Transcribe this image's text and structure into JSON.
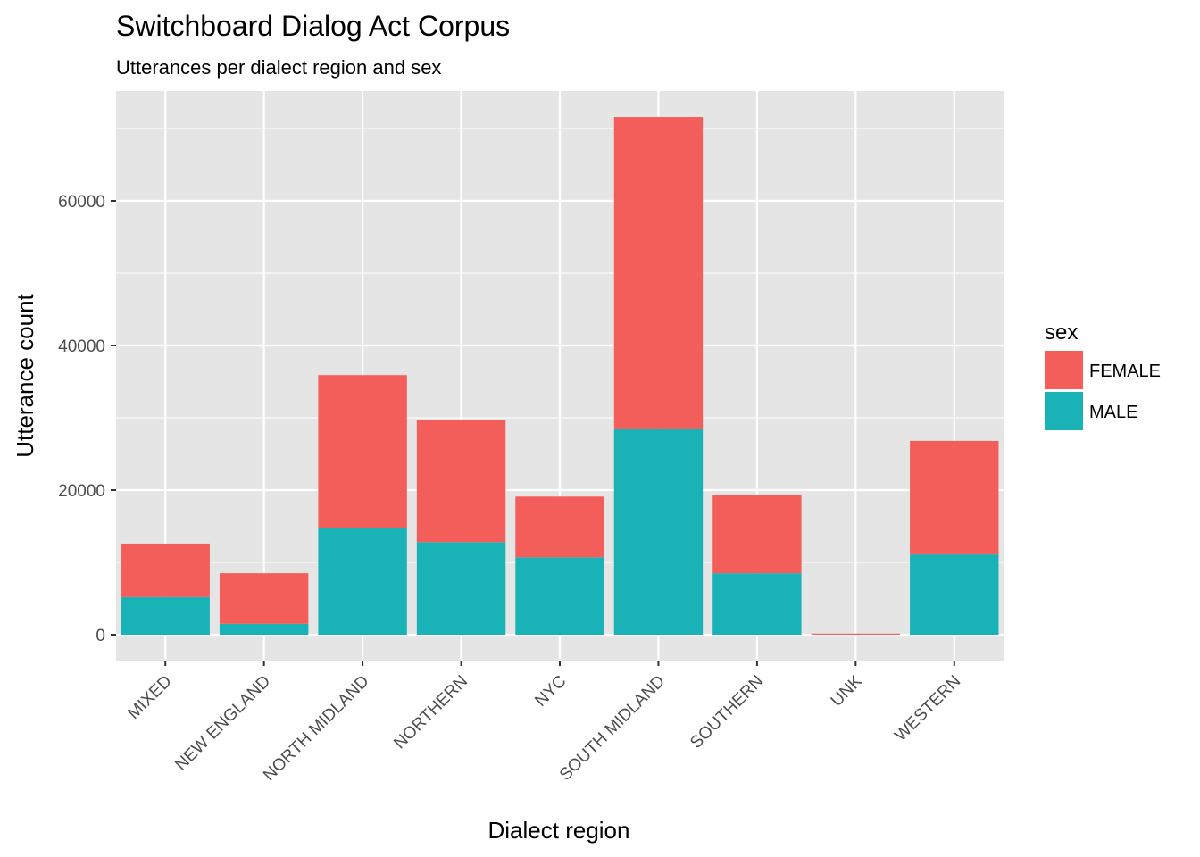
{
  "chart_data": {
    "type": "bar",
    "stacked": true,
    "title": "Switchboard Dialog Act Corpus",
    "subtitle": "Utterances per dialect region and sex",
    "xlabel": "Dialect region",
    "ylabel": "Utterance count",
    "categories": [
      "MIXED",
      "NEW ENGLAND",
      "NORTH MIDLAND",
      "NORTHERN",
      "NYC",
      "SOUTH MIDLAND",
      "SOUTHERN",
      "UNK",
      "WESTERN"
    ],
    "series": [
      {
        "name": "FEMALE",
        "color": "#F35E5A",
        "values": [
          7400,
          7000,
          21100,
          16900,
          8400,
          43200,
          10800,
          150,
          15700
        ]
      },
      {
        "name": "MALE",
        "color": "#19B3B7",
        "values": [
          5200,
          1500,
          14800,
          12800,
          10700,
          28400,
          8500,
          0,
          11100
        ]
      }
    ],
    "ylim": [
      0,
      72000
    ],
    "yticks": [
      0,
      20000,
      40000,
      60000
    ],
    "legend": {
      "title": "sex",
      "position": "right"
    },
    "grid": true,
    "background": "#E5E5E5",
    "gridline_color": "#FFFFFF"
  }
}
